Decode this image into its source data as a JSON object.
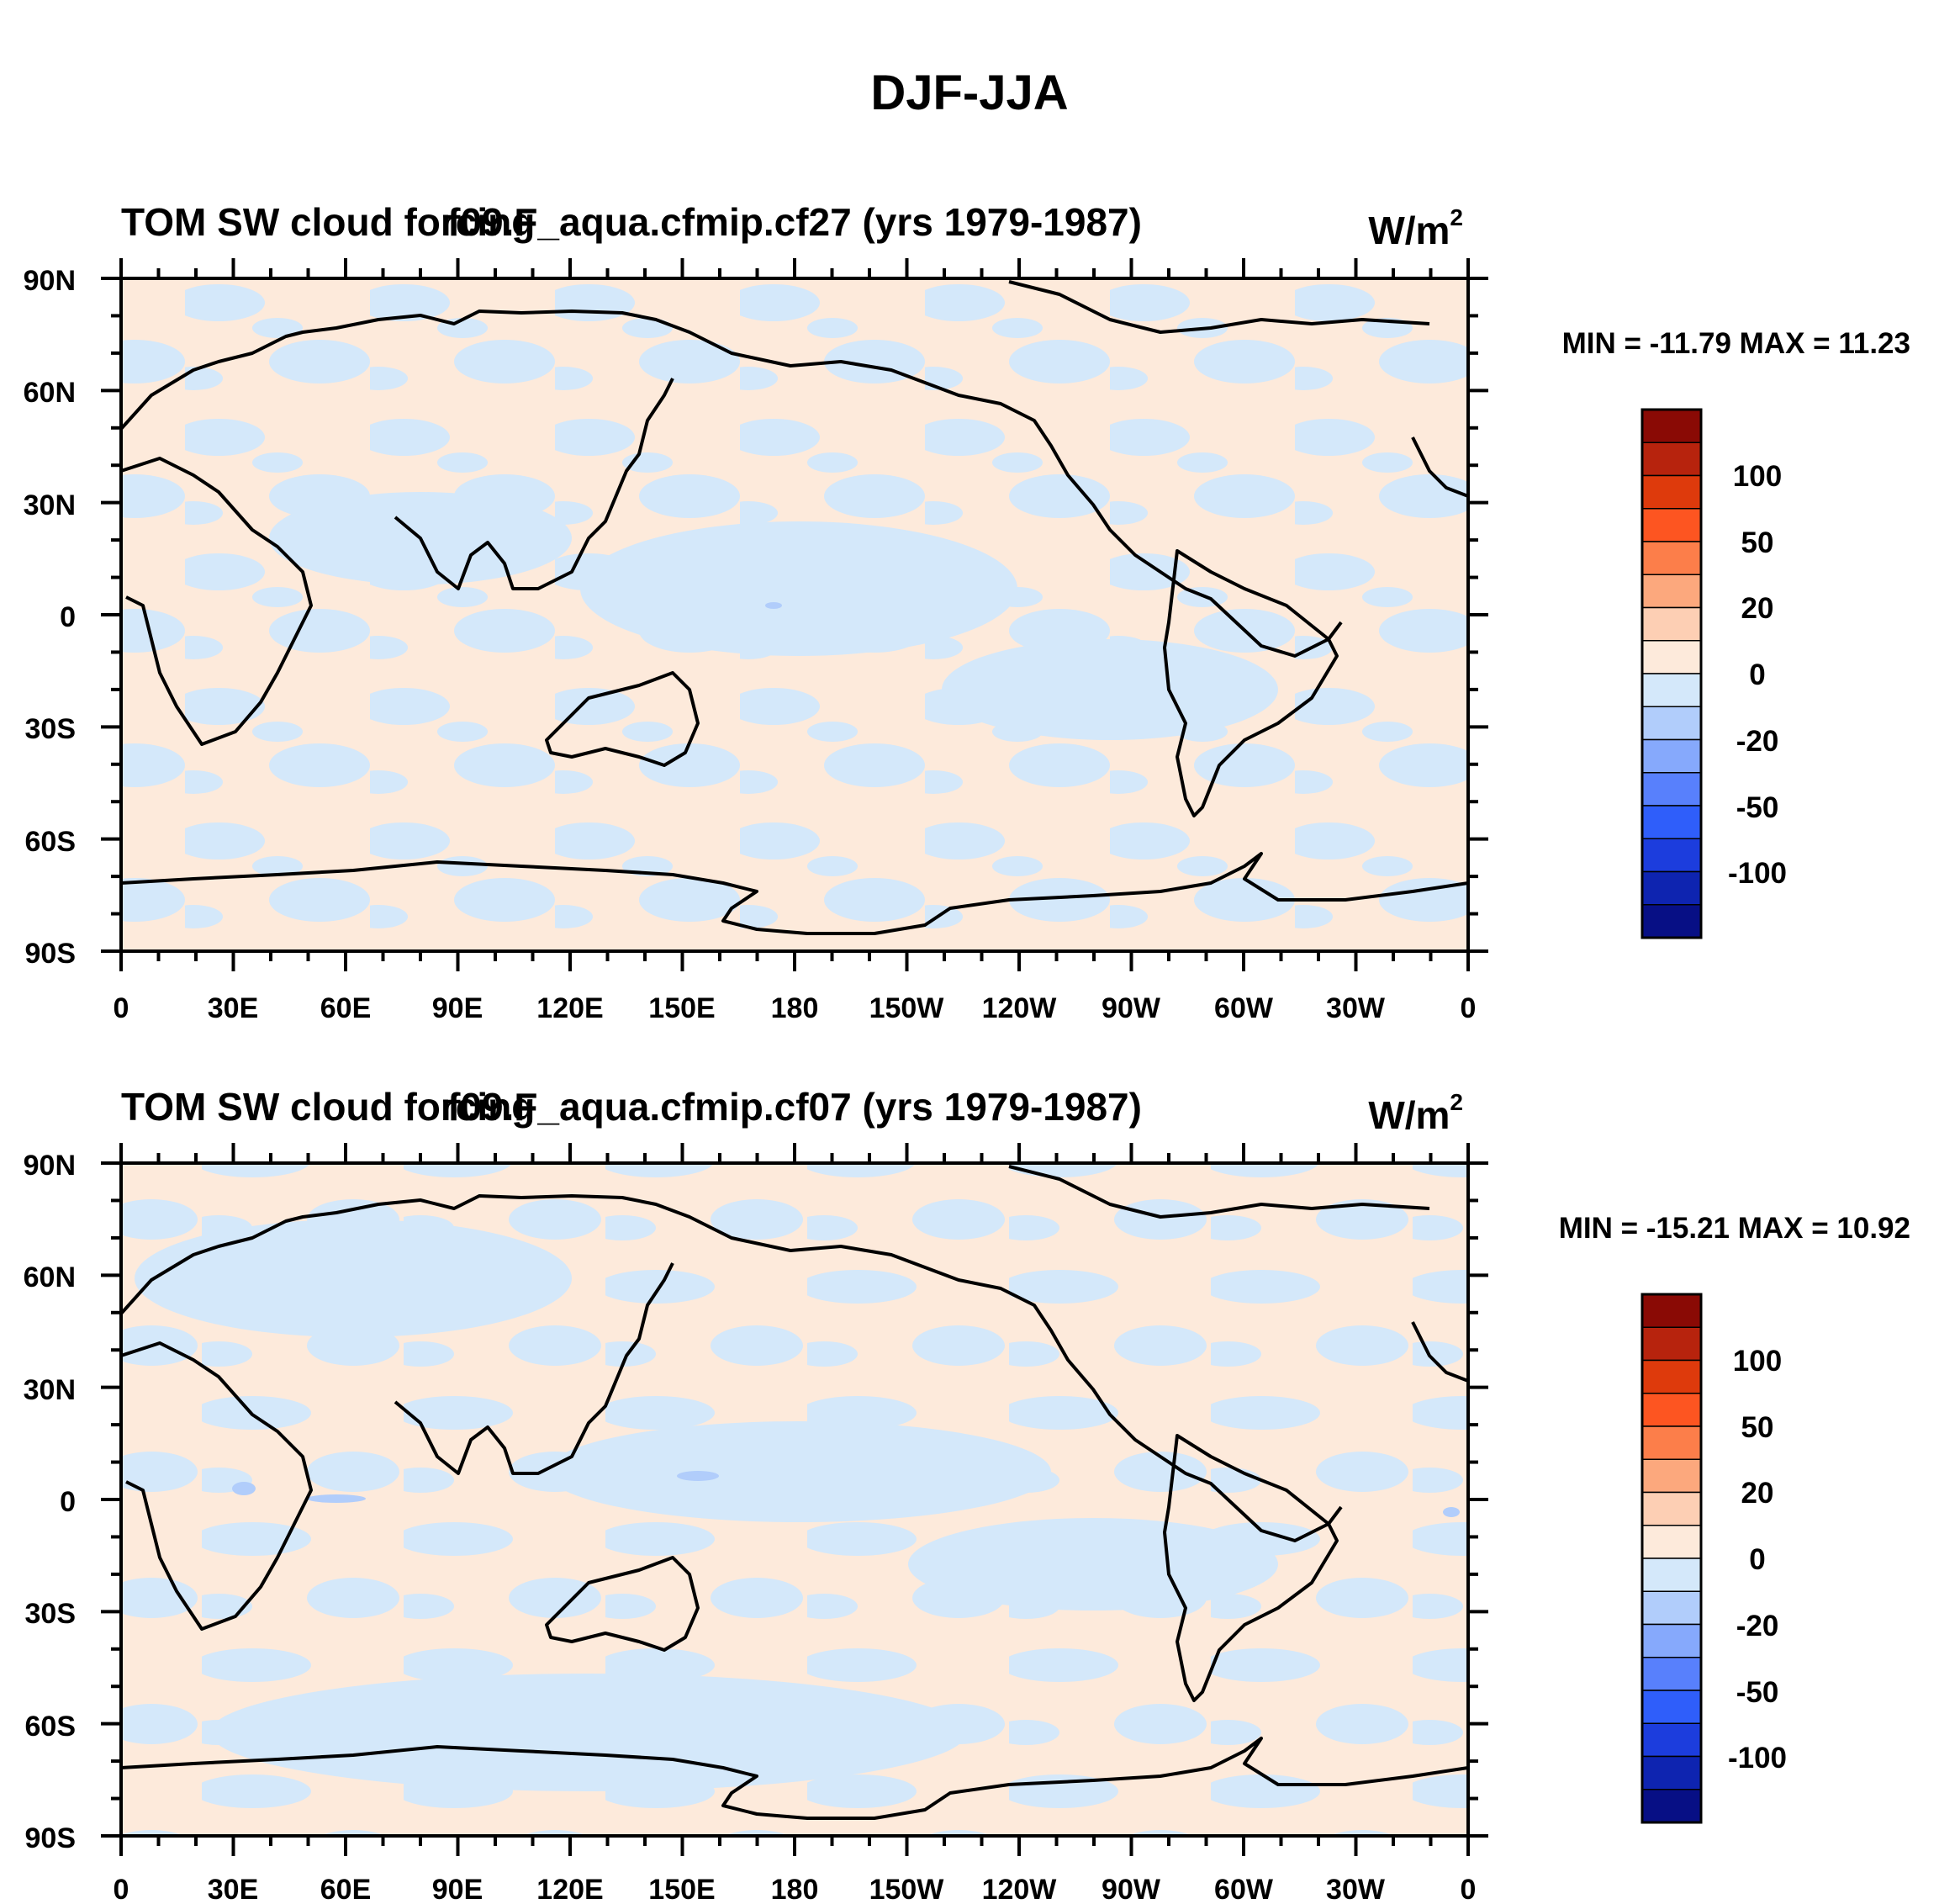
{
  "figure": {
    "title": "DJF-JJA",
    "colors": {
      "ocean_neg_light": "#d4e8fa",
      "pos_light": "#fdeadb",
      "coast": "#000000",
      "frame": "#000000"
    }
  },
  "panels": [
    {
      "left_title": "TOM SW cloud forcing",
      "center_title": "f09.F_aqua.cfmip.cf27 (yrs 1979-1987)",
      "units": "W/m",
      "units_sup": "2",
      "minmax": "MIN = -11.79 MAX =  11.23"
    },
    {
      "left_title": "TOM SW cloud forcing",
      "center_title": "f09.F_aqua.cfmip.cf07 (yrs 1979-1987)",
      "units": "W/m",
      "units_sup": "2",
      "minmax": "MIN = -15.21 MAX =  10.92"
    }
  ],
  "axes": {
    "lat_labels": [
      "90N",
      "60N",
      "30N",
      "0",
      "30S",
      "60S",
      "90S"
    ],
    "lon_labels": [
      "0",
      "30E",
      "60E",
      "90E",
      "120E",
      "150E",
      "180",
      "150W",
      "120W",
      "90W",
      "60W",
      "30W",
      "0"
    ]
  },
  "colorbar": {
    "labels": [
      "100",
      "50",
      "20",
      "0",
      "-20",
      "-50",
      "-100"
    ],
    "colors": [
      "#8a0a05",
      "#b7230d",
      "#de3a0c",
      "#fd5521",
      "#fc7e4a",
      "#fca87d",
      "#fdcfb4",
      "#fdeadb",
      "#d4e8fa",
      "#b1cdfb",
      "#86a9fc",
      "#5880fc",
      "#2f5efa",
      "#1c3ddd",
      "#0e24b0",
      "#070f85"
    ]
  },
  "chart_data": [
    {
      "type": "contour-map",
      "title": "TOM SW cloud forcing — f09.F_aqua.cfmip.cf27 (yrs 1979-1987)",
      "units": "W/m^2",
      "min": -11.79,
      "max": 11.23,
      "lat_range": [
        -90,
        90
      ],
      "lon_range": [
        0,
        360
      ],
      "contour_levels": [
        -100,
        -50,
        -20,
        0,
        20,
        50,
        100
      ]
    },
    {
      "type": "contour-map",
      "title": "TOM SW cloud forcing — f09.F_aqua.cfmip.cf07 (yrs 1979-1987)",
      "units": "W/m^2",
      "min": -15.21,
      "max": 10.92,
      "lat_range": [
        -90,
        90
      ],
      "lon_range": [
        0,
        360
      ],
      "contour_levels": [
        -100,
        -50,
        -20,
        0,
        20,
        50,
        100
      ]
    }
  ]
}
